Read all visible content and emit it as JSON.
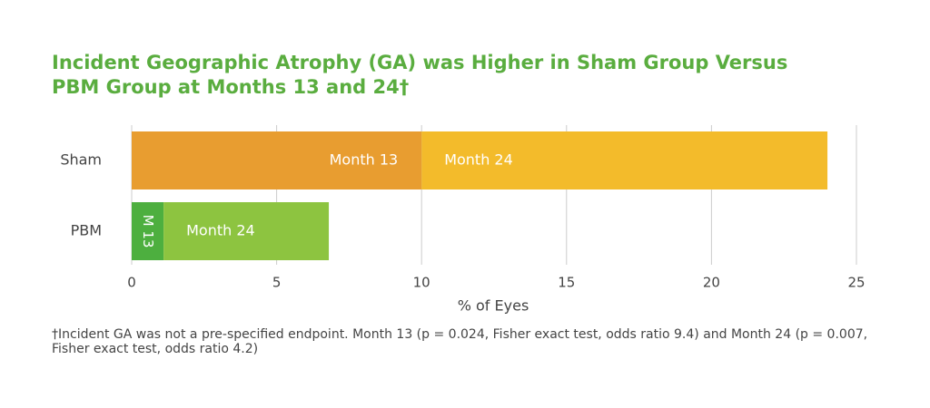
{
  "chart_data": {
    "type": "stacked-bar-horizontal",
    "title": [
      "Incident Geographic Atrophy (GA) was Higher in Sham Group Versus",
      "PBM Group at Months 13 and 24†"
    ],
    "categories": [
      "Sham",
      "PBM"
    ],
    "series": [
      {
        "labels": [
          "Month 13",
          "M 13"
        ],
        "colors": [
          "#e89d30",
          "#4daf3f"
        ],
        "values": [
          10,
          1.1
        ]
      },
      {
        "labels": [
          "Month 24",
          "Month 24"
        ],
        "colors": [
          "#f3bb2b",
          "#8dc440"
        ],
        "values": [
          14,
          5.7
        ]
      }
    ],
    "xlim": [
      0,
      25
    ],
    "xticks": [
      0,
      5,
      10,
      15,
      20,
      25
    ],
    "grid": true,
    "xlabel": "% of Eyes",
    "footnote": "†Incident GA was not a pre-specified endpoint. Month 13 (p = 0.024, Fisher exact test, odds ratio 9.4) and Month 24 (p = 0.007, Fisher exact test, odds ratio 4.2)"
  }
}
